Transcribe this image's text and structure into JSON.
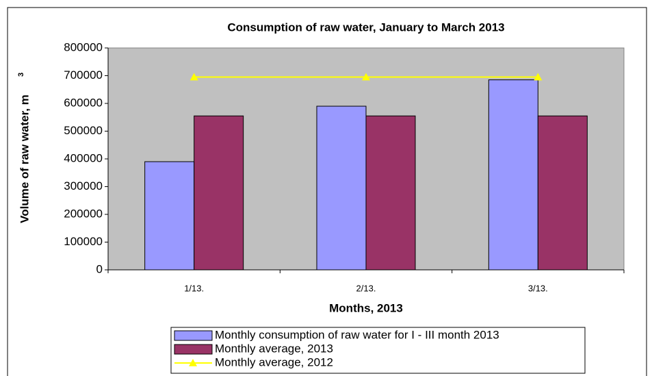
{
  "chart_data": {
    "type": "bar",
    "title": "Consumption of raw water, January to March 2013",
    "xlabel": "Months, 2013",
    "ylabel": "Volume of raw water, m",
    "ylabel_superscript": "3",
    "categories": [
      "1/13.",
      "2/13.",
      "3/13."
    ],
    "series": [
      {
        "name": "Monthly consumption of raw water for I - III month 2013",
        "color": "#9999ff",
        "kind": "bar",
        "values": [
          390000,
          590000,
          685000
        ]
      },
      {
        "name": "Monthly average, 2013",
        "color": "#993366",
        "kind": "bar",
        "values": [
          555000,
          555000,
          555000
        ]
      },
      {
        "name": "Monthly average, 2012",
        "color": "#ffff00",
        "kind": "line",
        "values": [
          695000,
          695000,
          695000
        ]
      }
    ],
    "ylim": [
      0,
      800000
    ],
    "yticks": [
      0,
      100000,
      200000,
      300000,
      400000,
      500000,
      600000,
      700000,
      800000
    ],
    "plot_background": "#c0c0c0"
  }
}
